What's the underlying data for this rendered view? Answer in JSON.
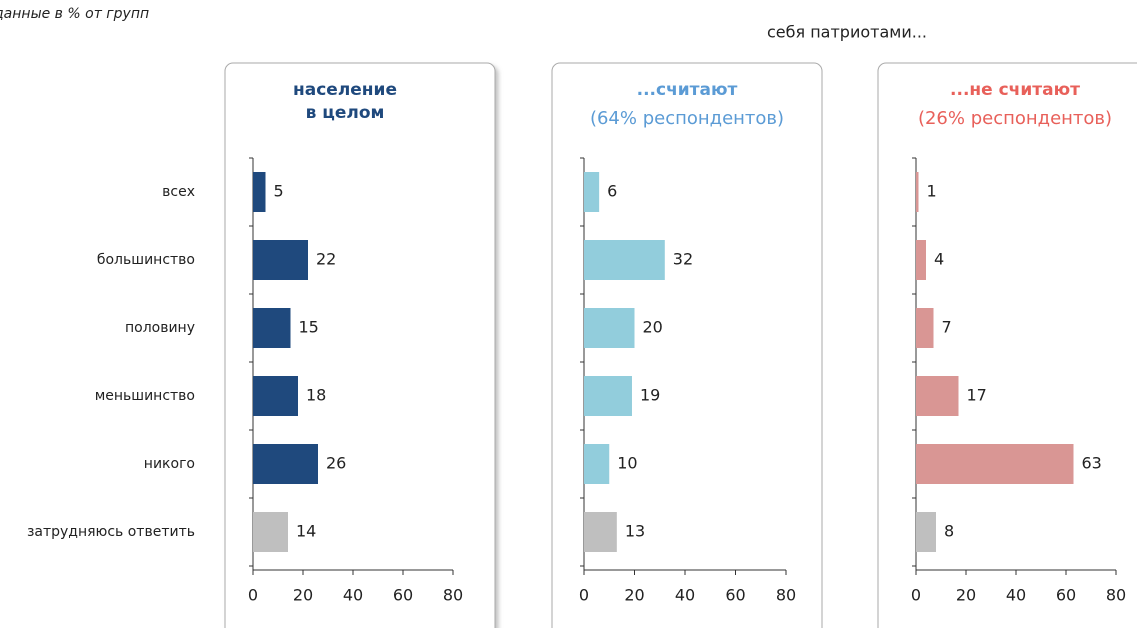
{
  "note_top_left": "данные в % от групп",
  "header_right": "себя патриотами...",
  "chart_data": [
    {
      "type": "bar",
      "title": [
        "население",
        "в целом"
      ],
      "title_color": "#1f497d",
      "categories": [
        "всех",
        "большинство",
        "половину",
        "меньшинство",
        "никого",
        "затрудняюсь ответить"
      ],
      "values": [
        5,
        22,
        15,
        18,
        26,
        14
      ],
      "colors": [
        "#1f497d",
        "#1f497d",
        "#1f497d",
        "#1f497d",
        "#1f497d",
        "#bfbfbf"
      ],
      "xlim": [
        0,
        80
      ],
      "xticks": [
        0,
        20,
        40,
        60,
        80
      ]
    },
    {
      "type": "bar",
      "title": "...считают",
      "subtitle": "(64% респондентов)",
      "title_color": "#5b9bd5",
      "values": [
        6,
        32,
        20,
        19,
        10,
        13
      ],
      "colors": [
        "#92cddc",
        "#92cddc",
        "#92cddc",
        "#92cddc",
        "#92cddc",
        "#bfbfbf"
      ],
      "xlim": [
        0,
        80
      ],
      "xticks": [
        0,
        20,
        40,
        60,
        80
      ]
    },
    {
      "type": "bar",
      "title": "...не считают",
      "subtitle": "(26% респондентов)",
      "title_color": "#e8605a",
      "values": [
        1,
        4,
        7,
        17,
        63,
        8
      ],
      "colors": [
        "#d99694",
        "#d99694",
        "#d99694",
        "#d99694",
        "#d99694",
        "#bfbfbf"
      ],
      "xlim": [
        0,
        80
      ],
      "xticks": [
        0,
        20,
        40,
        60,
        80
      ]
    }
  ]
}
